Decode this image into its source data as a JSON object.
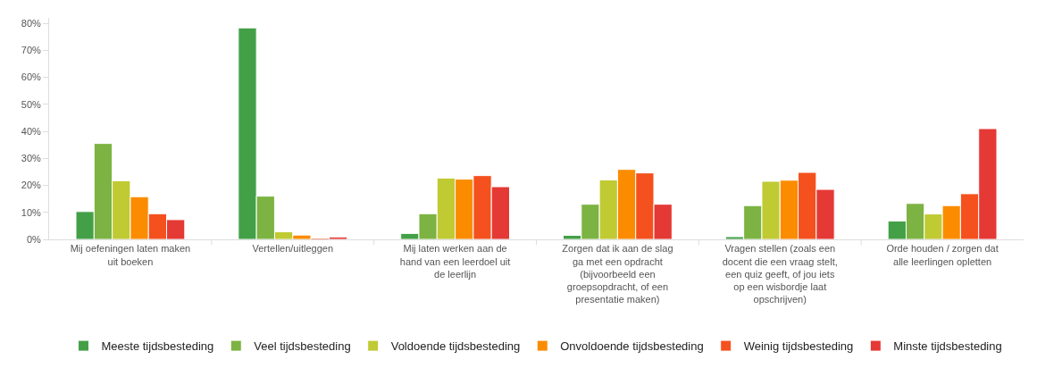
{
  "chart_data": {
    "type": "bar",
    "categories": [
      "Mij oefeningen laten maken uit boeken",
      "Vertellen/uitleggen",
      "Mij laten werken aan de hand van een leerdoel uit de leerlijn",
      "Zorgen dat ik aan de slag ga met een opdracht (bijvoorbeeld een groepsopdracht, of een presentatie maken)",
      "Vragen stellen (zoals een docent die een vraag stelt, een quiz geeft, of jou iets op een wisbordje laat opschrijven)",
      "Orde houden / zorgen dat alle leerlingen opletten"
    ],
    "series": [
      {
        "name": "Meeste tijdsbesteding",
        "color": "#43a047",
        "values": [
          10.3,
          78.3,
          2.2,
          1.5,
          1.0,
          6.8
        ]
      },
      {
        "name": "Veel tijdsbesteding",
        "color": "#7cb342",
        "values": [
          35.5,
          16.0,
          9.5,
          13.0,
          12.5,
          13.3
        ]
      },
      {
        "name": "Voldoende tijdsbesteding",
        "color": "#c0ca33",
        "values": [
          21.7,
          2.8,
          22.7,
          22.0,
          21.5,
          9.4
        ]
      },
      {
        "name": "Onvoldoende tijdsbesteding",
        "color": "#fb8c00",
        "values": [
          15.8,
          1.6,
          22.3,
          25.9,
          21.9,
          12.5
        ]
      },
      {
        "name": "Weinig tijdsbesteding",
        "color": "#f4511e",
        "values": [
          9.5,
          0.5,
          23.6,
          24.6,
          24.8,
          16.9
        ]
      },
      {
        "name": "Minste tijdsbesteding",
        "color": "#e53935",
        "values": [
          7.3,
          0.9,
          19.5,
          13.0,
          18.5,
          41.0
        ]
      }
    ],
    "ylim": [
      0,
      82
    ],
    "yticks": [
      {
        "value": 0,
        "label": "0%"
      },
      {
        "value": 10,
        "label": "10%"
      },
      {
        "value": 20,
        "label": "20%"
      },
      {
        "value": 30,
        "label": "30%"
      },
      {
        "value": 40,
        "label": "40%"
      },
      {
        "value": 50,
        "label": "50%"
      },
      {
        "value": 60,
        "label": "60%"
      },
      {
        "value": 70,
        "label": "70%"
      },
      {
        "value": 80,
        "label": "80%"
      }
    ],
    "legend": "bottom"
  }
}
